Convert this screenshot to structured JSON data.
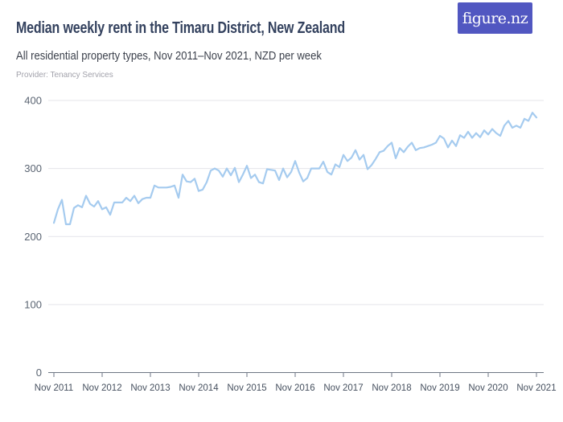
{
  "header": {
    "title": "Median weekly rent in the Timaru District, New Zealand",
    "subtitle": "All residential property types, Nov 2011–Nov 2021, NZD per week",
    "provider": "Provider: Tenancy Services",
    "logo_text": "figure.nz"
  },
  "colors": {
    "accent_line": "#a5cbef",
    "logo_bg": "#5157c1",
    "title_text": "#33415e",
    "grid": "#e4e4ea",
    "axis": "#6e7684",
    "y_label": "#5a6472",
    "x_label": "#46505f"
  },
  "chart_data": {
    "type": "line",
    "title": "Median weekly rent in the Timaru District, New Zealand",
    "subtitle": "All residential property types, Nov 2011–Nov 2021, NZD per week",
    "provider": "Tenancy Services",
    "x_unit": "month",
    "x_frequency": "monthly",
    "x_start": "Nov 2011",
    "x_end": "Nov 2021",
    "x_tick_labels": [
      "Nov 2011",
      "Nov 2012",
      "Nov 2013",
      "Nov 2014",
      "Nov 2015",
      "Nov 2016",
      "Nov 2017",
      "Nov 2018",
      "Nov 2019",
      "Nov 2020",
      "Nov 2021"
    ],
    "y_ticks": [
      0,
      100,
      200,
      300,
      400
    ],
    "ylim": [
      0,
      400
    ],
    "ylabel": "NZD per week",
    "grid": true,
    "legend": false,
    "series": [
      {
        "name": "Median weekly rent (NZD)",
        "values": [
          220,
          240,
          254,
          218,
          218,
          242,
          246,
          243,
          260,
          248,
          244,
          252,
          240,
          243,
          232,
          250,
          250,
          250,
          257,
          252,
          260,
          249,
          255,
          257,
          257,
          275,
          272,
          272,
          272,
          273,
          275,
          257,
          291,
          281,
          280,
          285,
          267,
          269,
          280,
          297,
          300,
          297,
          288,
          300,
          290,
          301,
          280,
          291,
          304,
          286,
          291,
          280,
          278,
          299,
          298,
          297,
          283,
          300,
          287,
          295,
          311,
          294,
          281,
          286,
          300,
          300,
          300,
          310,
          295,
          291,
          306,
          302,
          320,
          311,
          316,
          327,
          313,
          320,
          299,
          305,
          314,
          324,
          326,
          333,
          338,
          315,
          330,
          324,
          332,
          338,
          327,
          330,
          331,
          333,
          335,
          338,
          348,
          344,
          331,
          341,
          333,
          349,
          345,
          354,
          345,
          352,
          346,
          356,
          350,
          358,
          352,
          348,
          363,
          370,
          360,
          363,
          360,
          373,
          370,
          382,
          375
        ]
      }
    ]
  }
}
